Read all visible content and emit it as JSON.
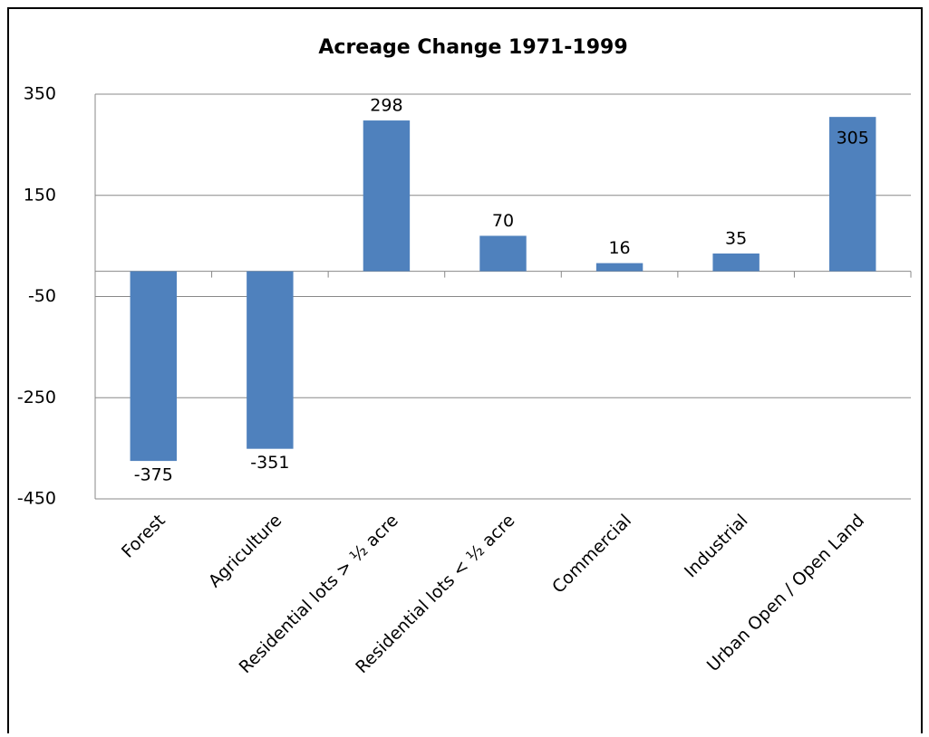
{
  "chart_data": {
    "type": "bar",
    "title": "Acreage Change 1971-1999",
    "categories": [
      "Forest",
      "Agriculture",
      "Residential lots > ½ acre",
      "Residential lots < ½ acre",
      "Commercial",
      "Industrial",
      "Urban Open / Open Land"
    ],
    "values": [
      -375,
      -351,
      298,
      70,
      16,
      35,
      305
    ],
    "color": "#4f81bd",
    "ylim": [
      -450,
      350
    ],
    "yticks": [
      -450,
      -250,
      -50,
      150,
      350
    ],
    "grid": true
  }
}
